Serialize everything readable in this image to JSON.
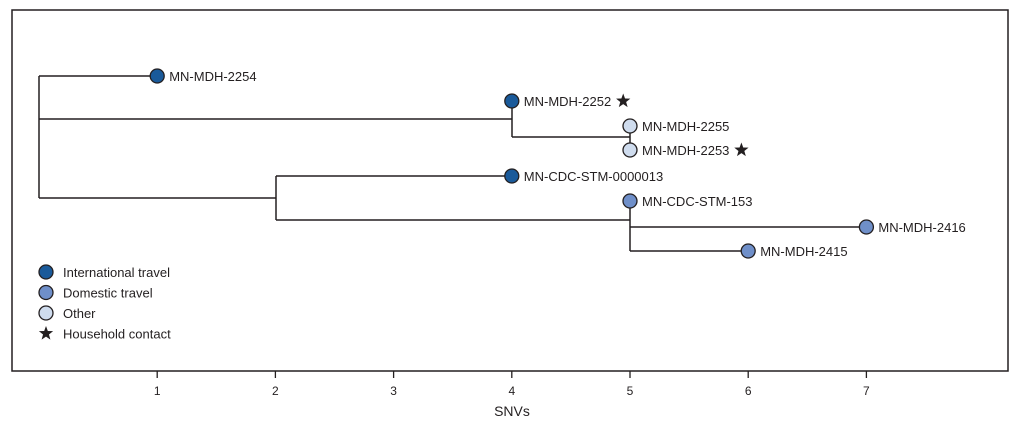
{
  "chart_data": {
    "type": "phylogenetic-tree",
    "xlabel": "SNVs",
    "x_ticks": [
      "1",
      "2",
      "3",
      "4",
      "5",
      "6",
      "7"
    ],
    "xlim": [
      0,
      8.2
    ],
    "colors": {
      "International travel": "#1a5a9a",
      "Domestic travel": "#6f8fc9",
      "Other": "#cfdcee"
    },
    "legend": [
      {
        "label": "International travel",
        "symbol": "circle",
        "category": "International travel"
      },
      {
        "label": "Domestic travel",
        "symbol": "circle",
        "category": "Domestic travel"
      },
      {
        "label": "Other",
        "symbol": "circle",
        "category": "Other"
      },
      {
        "label": "Household contact",
        "symbol": "star-icon"
      }
    ],
    "tips": [
      {
        "label": "MN-MDH-2254",
        "snv": 1,
        "category": "International travel",
        "household_contact": false
      },
      {
        "label": "MN-MDH-2252",
        "snv": 4,
        "category": "International travel",
        "household_contact": true
      },
      {
        "label": "MN-MDH-2255",
        "snv": 5,
        "category": "Other",
        "household_contact": false
      },
      {
        "label": "MN-MDH-2253",
        "snv": 5,
        "category": "Other",
        "household_contact": true
      },
      {
        "label": "MN-CDC-STM-0000013",
        "snv": 4,
        "category": "International travel",
        "household_contact": false
      },
      {
        "label": "MN-CDC-STM-153",
        "snv": 5,
        "category": "Domestic travel",
        "household_contact": false
      },
      {
        "label": "MN-MDH-2416",
        "snv": 7,
        "category": "Domestic travel",
        "household_contact": false
      },
      {
        "label": "MN-MDH-2415",
        "snv": 6,
        "category": "Domestic travel",
        "household_contact": false
      }
    ]
  }
}
